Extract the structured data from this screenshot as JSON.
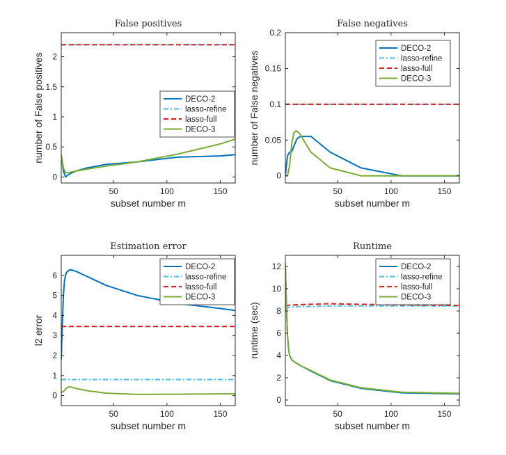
{
  "chart_data": [
    {
      "type": "line",
      "title": "False positives",
      "xlabel": "subset number m",
      "ylabel": "number of False positives",
      "xlim": [
        1,
        164
      ],
      "ylim": [
        -0.1,
        2.4
      ],
      "xticks": [
        50,
        100,
        150
      ],
      "yticks": [
        0,
        0.5,
        1,
        1.5,
        2
      ],
      "ytick_labels": [
        "0",
        "0.5",
        "1",
        "1.5",
        "2"
      ],
      "legend_position": "center-right",
      "series": [
        {
          "name": "DECO-2",
          "color": "#0072bd",
          "style": "solid",
          "x": [
            1,
            3,
            5,
            7,
            10,
            15,
            25,
            43,
            72,
            110,
            150,
            164
          ],
          "y": [
            0.37,
            0.1,
            0.0,
            0.03,
            0.06,
            0.1,
            0.15,
            0.21,
            0.25,
            0.33,
            0.35,
            0.37
          ]
        },
        {
          "name": "lasso-refine",
          "color": "#4dbeee",
          "style": "dashdot",
          "x": [
            1,
            164
          ],
          "y": [
            2.2,
            2.2
          ]
        },
        {
          "name": "lasso-full",
          "color": "#e01b1b",
          "style": "dashed",
          "x": [
            1,
            164
          ],
          "y": [
            2.2,
            2.2
          ]
        },
        {
          "name": "DECO-3",
          "color": "#77ac30",
          "style": "solid",
          "x": [
            1,
            3,
            5,
            7,
            10,
            15,
            25,
            43,
            72,
            110,
            150,
            164
          ],
          "y": [
            0.37,
            0.15,
            0.07,
            0.07,
            0.08,
            0.1,
            0.13,
            0.18,
            0.25,
            0.38,
            0.55,
            0.63
          ]
        }
      ]
    },
    {
      "type": "line",
      "title": "False negatives",
      "xlabel": "subset number m",
      "ylabel": "number of False negatives",
      "xlim": [
        1,
        164
      ],
      "ylim": [
        -0.01,
        0.2
      ],
      "xticks": [
        50,
        100,
        150
      ],
      "yticks": [
        0,
        0.05,
        0.1,
        0.15,
        0.2
      ],
      "ytick_labels": [
        "0",
        "0.05",
        "0.1",
        "0.15",
        "0.2"
      ],
      "legend_position": "top-right",
      "series": [
        {
          "name": "DECO-2",
          "color": "#0072bd",
          "style": "solid",
          "x": [
            1,
            2,
            3,
            5,
            7,
            10,
            12,
            15,
            25,
            43,
            72,
            110,
            164
          ],
          "y": [
            0.0,
            0.015,
            0.028,
            0.033,
            0.034,
            0.045,
            0.052,
            0.055,
            0.055,
            0.033,
            0.011,
            0.0,
            0.0
          ]
        },
        {
          "name": "lasso-refine",
          "color": "#4dbeee",
          "style": "dashdot",
          "x": [
            1,
            164
          ],
          "y": [
            0.1,
            0.1
          ]
        },
        {
          "name": "lasso-full",
          "color": "#e01b1b",
          "style": "dashed",
          "x": [
            1,
            164
          ],
          "y": [
            0.1,
            0.1
          ]
        },
        {
          "name": "DECO-3",
          "color": "#77ac30",
          "style": "solid",
          "x": [
            1,
            3,
            5,
            7,
            9,
            11,
            14,
            18,
            25,
            43,
            72,
            110,
            164
          ],
          "y": [
            0.0,
            0.0,
            0.015,
            0.045,
            0.06,
            0.063,
            0.06,
            0.05,
            0.033,
            0.011,
            0.0,
            0.0,
            0.0
          ]
        }
      ]
    },
    {
      "type": "line",
      "title": "Estimation error",
      "xlabel": "subset number m",
      "ylabel": "l2 error",
      "xlim": [
        1,
        164
      ],
      "ylim": [
        -0.5,
        7
      ],
      "xticks": [
        50,
        100,
        150
      ],
      "yticks": [
        0,
        1,
        2,
        3,
        4,
        5,
        6
      ],
      "ytick_labels": [
        "0",
        "1",
        "2",
        "3",
        "4",
        "5",
        "6"
      ],
      "legend_position": "top-right",
      "series": [
        {
          "name": "DECO-2",
          "color": "#0072bd",
          "style": "solid",
          "x": [
            1,
            2,
            3,
            4,
            5,
            6,
            8,
            10,
            15,
            25,
            43,
            72,
            110,
            150,
            164
          ],
          "y": [
            1.8,
            3.5,
            5.0,
            5.7,
            6.0,
            6.15,
            6.25,
            6.28,
            6.2,
            5.95,
            5.5,
            5.0,
            4.6,
            4.35,
            4.25
          ]
        },
        {
          "name": "lasso-refine",
          "color": "#4dbeee",
          "style": "dashdot",
          "x": [
            1,
            164
          ],
          "y": [
            0.8,
            0.8
          ]
        },
        {
          "name": "lasso-full",
          "color": "#e01b1b",
          "style": "dashed",
          "x": [
            1,
            164
          ],
          "y": [
            3.45,
            3.45
          ]
        },
        {
          "name": "DECO-3",
          "color": "#77ac30",
          "style": "solid",
          "x": [
            1,
            3,
            5,
            7,
            9,
            12,
            17,
            25,
            43,
            72,
            110,
            164
          ],
          "y": [
            0.15,
            0.2,
            0.32,
            0.42,
            0.44,
            0.4,
            0.33,
            0.25,
            0.12,
            0.06,
            0.07,
            0.09
          ]
        }
      ]
    },
    {
      "type": "line",
      "title": "Runtime",
      "xlabel": "subset number m",
      "ylabel": "runtime (sec)",
      "xlim": [
        1,
        164
      ],
      "ylim": [
        -0.5,
        13
      ],
      "xticks": [
        50,
        100,
        150
      ],
      "yticks": [
        0,
        2,
        4,
        6,
        8,
        10,
        12
      ],
      "ytick_labels": [
        "0",
        "2",
        "4",
        "6",
        "8",
        "10",
        "12"
      ],
      "legend_position": "top-right",
      "series": [
        {
          "name": "DECO-2",
          "color": "#0072bd",
          "style": "solid",
          "x": [
            1,
            2,
            3,
            4,
            5,
            7,
            10,
            15,
            25,
            43,
            72,
            110,
            164
          ],
          "y": [
            12.2,
            8.5,
            5.8,
            4.6,
            4.0,
            3.6,
            3.4,
            3.1,
            2.6,
            1.75,
            1.05,
            0.65,
            0.55
          ]
        },
        {
          "name": "lasso-refine",
          "color": "#4dbeee",
          "style": "dashdot",
          "x": [
            1,
            10,
            25,
            43,
            72,
            110,
            164
          ],
          "y": [
            8.3,
            8.4,
            8.4,
            8.45,
            8.45,
            8.45,
            8.45
          ]
        },
        {
          "name": "lasso-full",
          "color": "#e01b1b",
          "style": "dashed",
          "x": [
            1,
            10,
            25,
            43,
            72,
            110,
            164
          ],
          "y": [
            8.5,
            8.55,
            8.6,
            8.65,
            8.6,
            8.55,
            8.5
          ]
        },
        {
          "name": "DECO-3",
          "color": "#77ac30",
          "style": "solid",
          "x": [
            1,
            2,
            3,
            4,
            5,
            7,
            10,
            15,
            25,
            43,
            72,
            110,
            164
          ],
          "y": [
            12.2,
            8.5,
            5.8,
            4.6,
            4.0,
            3.6,
            3.4,
            3.1,
            2.65,
            1.8,
            1.1,
            0.7,
            0.6
          ]
        }
      ]
    }
  ]
}
